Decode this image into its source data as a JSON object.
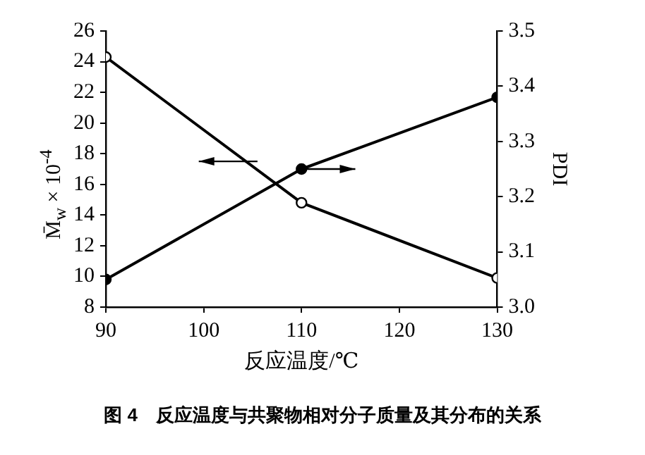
{
  "chart_data": {
    "type": "line",
    "title": "图 4　反应温度与共聚物相对分子质量及其分布的关系",
    "xlabel": "反应温度/℃",
    "ylabel": "M̄$_{w}$ × 10$^{-4}$",
    "y2label": "PDI",
    "x": [
      90,
      110,
      130
    ],
    "series": [
      {
        "color": "#000000",
        "values": [
          24.3,
          14.8,
          9.9
        ]
      },
      {
        "color": "#000000",
        "values": [
          3.05,
          3.25,
          3.38
        ],
        "axis": "y2"
      }
    ],
    "xlim": [
      90,
      130
    ],
    "xticks": [
      90,
      100,
      110,
      120,
      130
    ],
    "ylim": [
      8,
      26
    ],
    "yticks": [
      8,
      10,
      12,
      14,
      16,
      18,
      20,
      22,
      24,
      26
    ],
    "y2lim": [
      3.0,
      3.5
    ],
    "y2ticks": [
      {
        "value": 3.0,
        "label": "3.0"
      },
      {
        "value": 3.1,
        "label": "3.1"
      },
      {
        "value": 3.2,
        "label": "3.2"
      },
      {
        "value": 3.3,
        "label": "3.3"
      },
      {
        "value": 3.4,
        "label": "3.4"
      },
      {
        "value": 3.5,
        "label": "3.5"
      }
    ],
    "grid": false,
    "legend": false,
    "marker": "circle",
    "line_style": "solid"
  }
}
